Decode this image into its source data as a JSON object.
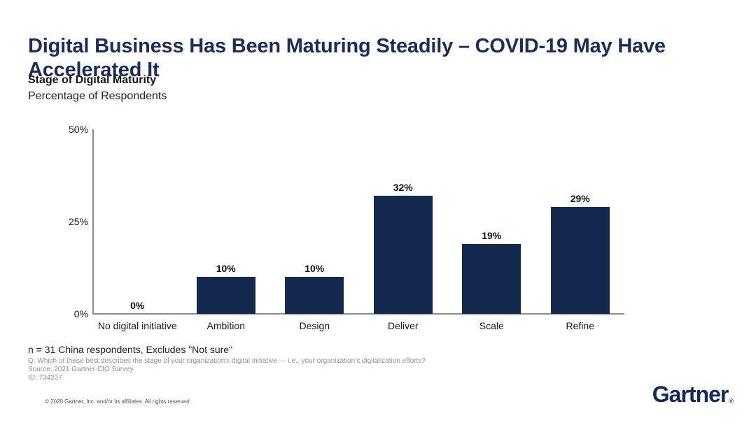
{
  "slide": {
    "title": "Digital Business Has Been Maturing Steadily – COVID-19 May Have Accelerated It",
    "chart_heading": "Stage of Digital Maturity",
    "chart_subheading": "Percentage of Respondents"
  },
  "chart_data": {
    "type": "bar",
    "title": "Stage of Digital Maturity",
    "subtitle": "Percentage of Respondents",
    "categories": [
      "No digital initiative",
      "Ambition",
      "Design",
      "Deliver",
      "Scale",
      "Refine"
    ],
    "values": [
      0,
      10,
      10,
      32,
      19,
      29
    ],
    "value_labels": [
      "0%",
      "10%",
      "10%",
      "32%",
      "19%",
      "29%"
    ],
    "xlabel": "",
    "ylabel": "",
    "ylim": [
      0,
      50
    ],
    "y_ticks": [
      0,
      25,
      50
    ],
    "y_tick_labels": [
      "0%",
      "25%",
      "50%"
    ],
    "grid": false,
    "legend": false,
    "bar_color": "#13294D"
  },
  "footnotes": {
    "n_line": "n = 31 China respondents, Excludes \"Not sure\"",
    "question": "Q. Which of these best describes the stage of your organization's digital initiative — i.e., your organization's digitalization efforts?",
    "source": "Source: 2021 Gartner CIO Survey",
    "id": "ID: 734227"
  },
  "footer": {
    "copyright": "© 2020 Gartner, Inc. and/or its affiliates. All rights reserved.",
    "logo_text": "Gartner",
    "logo_registered": "®"
  },
  "colors": {
    "title_navy": "#1A2D5B",
    "bar_navy": "#13294D",
    "logo_navy": "#112A5C",
    "axis_gray": "#8c8c8c",
    "footnote_gray": "#929292"
  }
}
